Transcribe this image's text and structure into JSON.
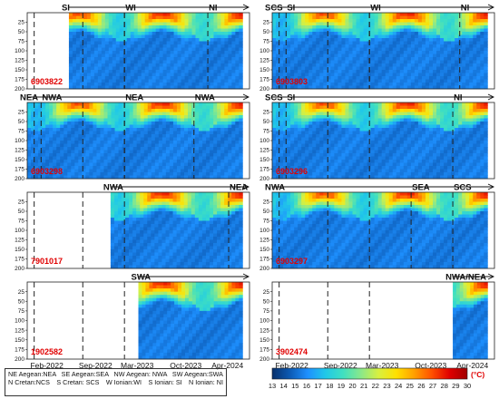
{
  "x_ticks": [
    "Feb-2022",
    "Sep-2022",
    "Mar-2023",
    "Oct-2023",
    "Apr-2024"
  ],
  "y_ticks": [
    25,
    50,
    75,
    100,
    125,
    150,
    175,
    200
  ],
  "colorbar": {
    "unit": "(°C)",
    "ticks": [
      13,
      14,
      15,
      16,
      17,
      18,
      19,
      20,
      21,
      22,
      23,
      24,
      25,
      26,
      27,
      28,
      29,
      30
    ],
    "min": 13,
    "max": 30,
    "colors": [
      "#08306b",
      "#0c5ab4",
      "#1e90ff",
      "#20c8e8",
      "#40e0c0",
      "#8ae88a",
      "#d8f040",
      "#ffe000",
      "#ffa000",
      "#ff5000",
      "#e00000",
      "#a00000"
    ]
  },
  "region_legend": [
    [
      "NE Aegean:NEA",
      "SE Aegean:SEA",
      "NW Aegean: NWA",
      "SW Aegean:SWA"
    ],
    [
      "N Cretan:NCS",
      "S Cretan: SCS",
      "W Ionian:WI",
      "S Ionian: SI",
      "N Ionian: NI"
    ]
  ],
  "chart_data": {
    "type": "heatmap",
    "variable": "temperature",
    "unit": "°C",
    "x_axis": [
      "Feb-2022",
      "Sep-2022",
      "Mar-2023",
      "Oct-2023",
      "Apr-2024"
    ],
    "y_axis_range": [
      0,
      200
    ],
    "color_range": [
      13,
      30
    ],
    "panels": [
      {
        "float_id": "6903822",
        "region_labels": [
          "SI",
          "WI",
          "NI"
        ],
        "start": "2022-07",
        "end": "2024-08",
        "transitions": [
          "2023-03",
          "2024-03"
        ]
      },
      {
        "float_id": "6903803",
        "region_labels": [
          "SCS",
          "SI",
          "WI",
          "NI"
        ],
        "start": "2022-01",
        "end": "2024-08",
        "transitions": [
          "2022-03",
          "2023-03",
          "2024-04"
        ]
      },
      {
        "float_id": "6903298",
        "region_labels": [
          "NEA",
          "NWA",
          "NEA",
          "NWA"
        ],
        "start": "2022-01",
        "end": "2024-08",
        "transitions": [
          "2022-03",
          "2023-03",
          "2024-01"
        ]
      },
      {
        "float_id": "6903296",
        "region_labels": [
          "SCS",
          "SI",
          "NI"
        ],
        "start": "2022-01",
        "end": "2024-08",
        "transitions": [
          "2022-03",
          "2024-03"
        ]
      },
      {
        "float_id": "7901017",
        "region_labels": [
          "NWA",
          "NEA"
        ],
        "start": "2023-01",
        "end": "2024-08",
        "transitions": [
          "2024-06"
        ]
      },
      {
        "float_id": "6903297",
        "region_labels": [
          "NWA",
          "SEA",
          "SCS"
        ],
        "start": "2022-01",
        "end": "2024-08",
        "transitions": [
          "2023-09",
          "2024-03"
        ]
      },
      {
        "float_id": "1902582",
        "region_labels": [
          "SWA"
        ],
        "start": "2023-05",
        "end": "2024-08",
        "transitions": []
      },
      {
        "float_id": "3902474",
        "region_labels": [
          "NWA/NEA"
        ],
        "start": "2024-03",
        "end": "2024-08",
        "transitions": []
      }
    ]
  }
}
